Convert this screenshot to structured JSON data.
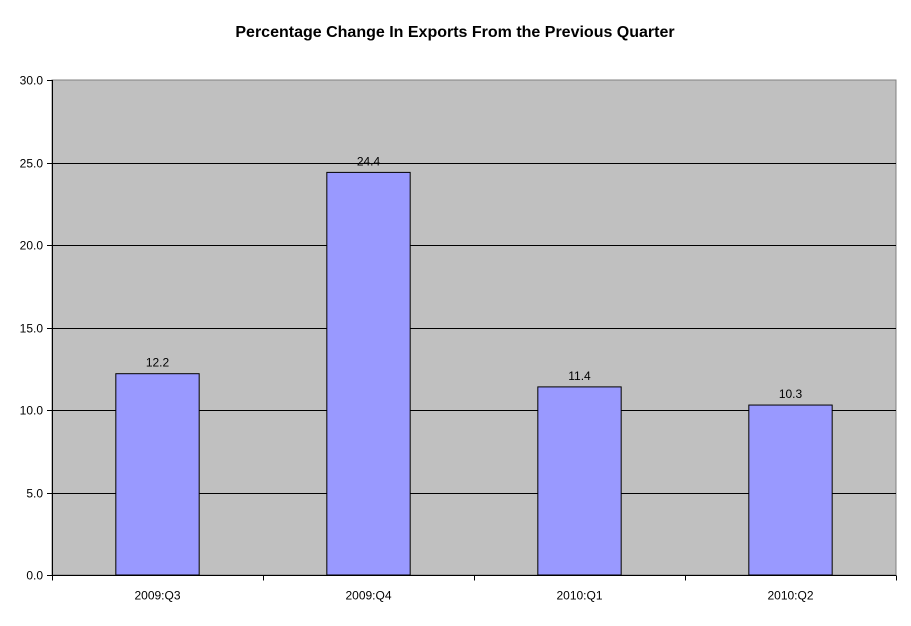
{
  "chart_data": {
    "type": "bar",
    "title": "Percentage Change In Exports From the Previous Quarter",
    "xlabel": "",
    "ylabel": "",
    "categories": [
      "2009:Q3",
      "2009:Q4",
      "2010:Q1",
      "2010:Q2"
    ],
    "values": [
      12.2,
      24.4,
      11.4,
      10.3
    ],
    "value_labels": [
      "12.2",
      "24.4",
      "11.4",
      "10.3"
    ],
    "ylim": [
      0,
      30
    ],
    "y_ticks": [
      0,
      5,
      10,
      15,
      20,
      25,
      30
    ],
    "y_tick_labels": [
      "0.0",
      "5.0",
      "10.0",
      "15.0",
      "20.0",
      "25.0",
      "30.0"
    ],
    "grid": true,
    "legend": "none",
    "colors": {
      "bar_fill": "#9999ff",
      "bar_stroke": "#000000",
      "plot_background": "#c0c0c0",
      "gridline": "#000000",
      "page_background": "#ffffff"
    }
  }
}
